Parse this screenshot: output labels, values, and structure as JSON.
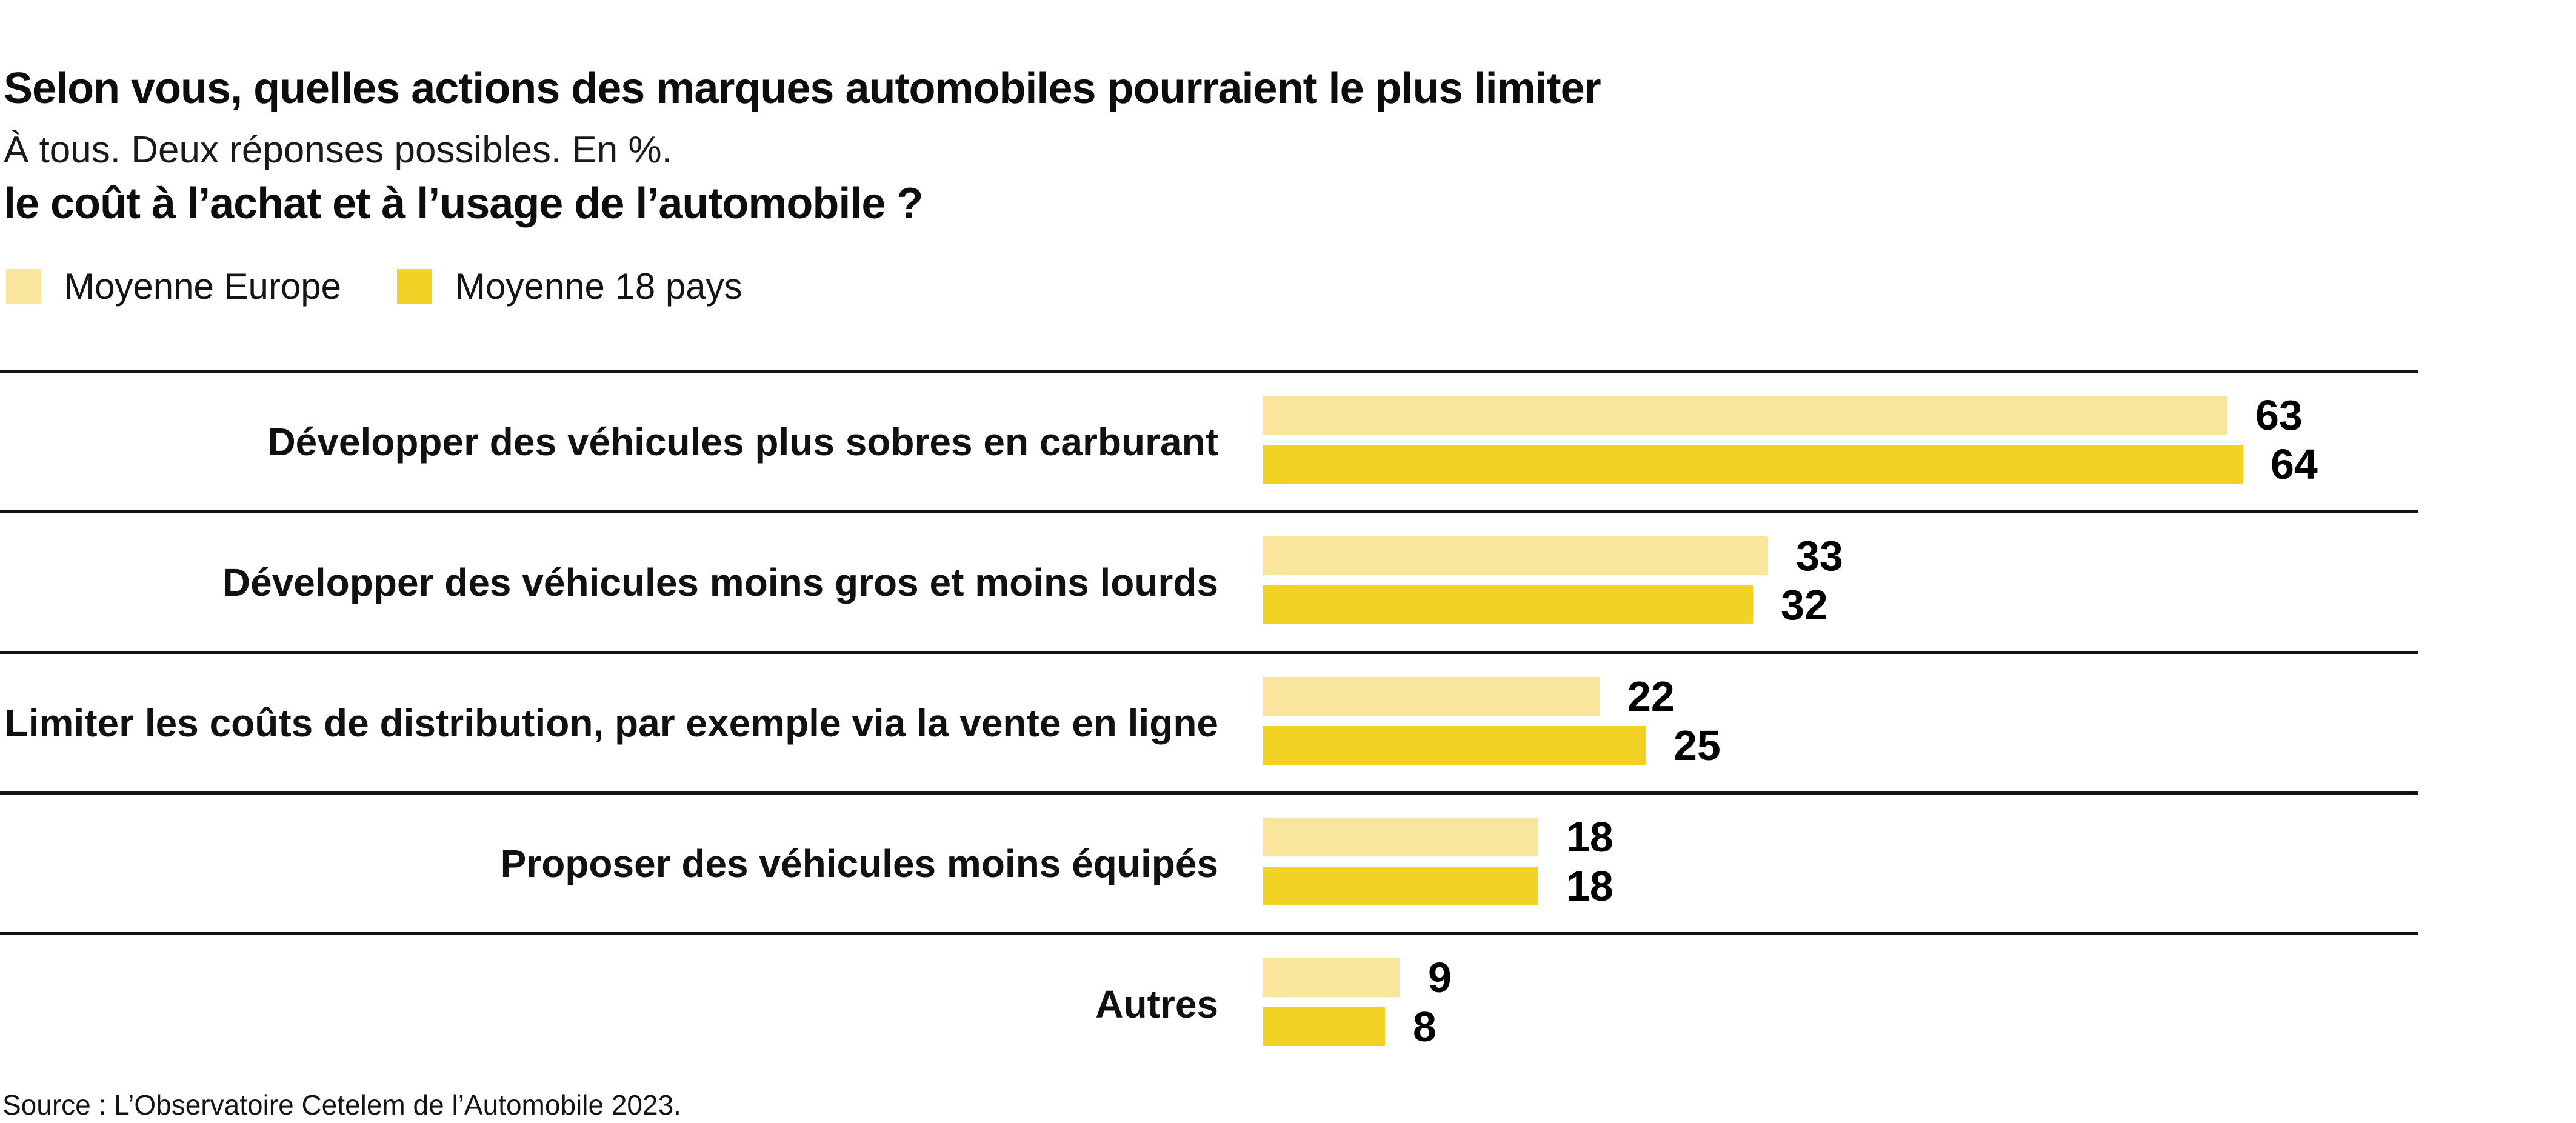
{
  "title": {
    "line1": "Selon vous, quelles actions des marques automobiles pourraient le plus limiter",
    "line2": "le coût à l’achat et à l’usage de l’automobile ?"
  },
  "subtitle": "À tous. Deux réponses possibles. En %.",
  "legend": [
    {
      "label": "Moyenne Europe",
      "color": "#FAE59D"
    },
    {
      "label": "Moyenne 18 pays",
      "color": "#F3D226"
    }
  ],
  "chart_data": {
    "type": "bar",
    "orientation": "horizontal",
    "title": "Selon vous, quelles actions des marques automobiles pourraient le plus limiter le coût à l’achat et à l’usage de l’automobile ?",
    "subtitle": "À tous. Deux réponses possibles. En %.",
    "unit": "%",
    "categories": [
      "Développer des véhicules plus sobres en carburant",
      "Développer des véhicules moins gros et moins lourds",
      "Limiter les coûts de distribution, par exemple via la vente en ligne",
      "Proposer des véhicules moins équipés",
      "Autres"
    ],
    "series": [
      {
        "name": "Moyenne Europe",
        "color": "#FAE59D",
        "values": [
          63,
          33,
          22,
          18,
          9
        ]
      },
      {
        "name": "Moyenne 18 pays",
        "color": "#F3D226",
        "values": [
          64,
          32,
          25,
          18,
          8
        ]
      }
    ],
    "value_labels": true,
    "xlim": [
      0,
      100
    ],
    "grid": false,
    "axes_shown": false,
    "legend_position": "top-left",
    "row_separator_lines": true
  },
  "source": "Source : L’Observatoire Cetelem de l’Automobile 2023.",
  "colors": {
    "background": "#FFFFFF",
    "text": "#141414",
    "separator_line": "#141414",
    "series_light": "#FAE59D",
    "series_dark": "#F3D226"
  }
}
